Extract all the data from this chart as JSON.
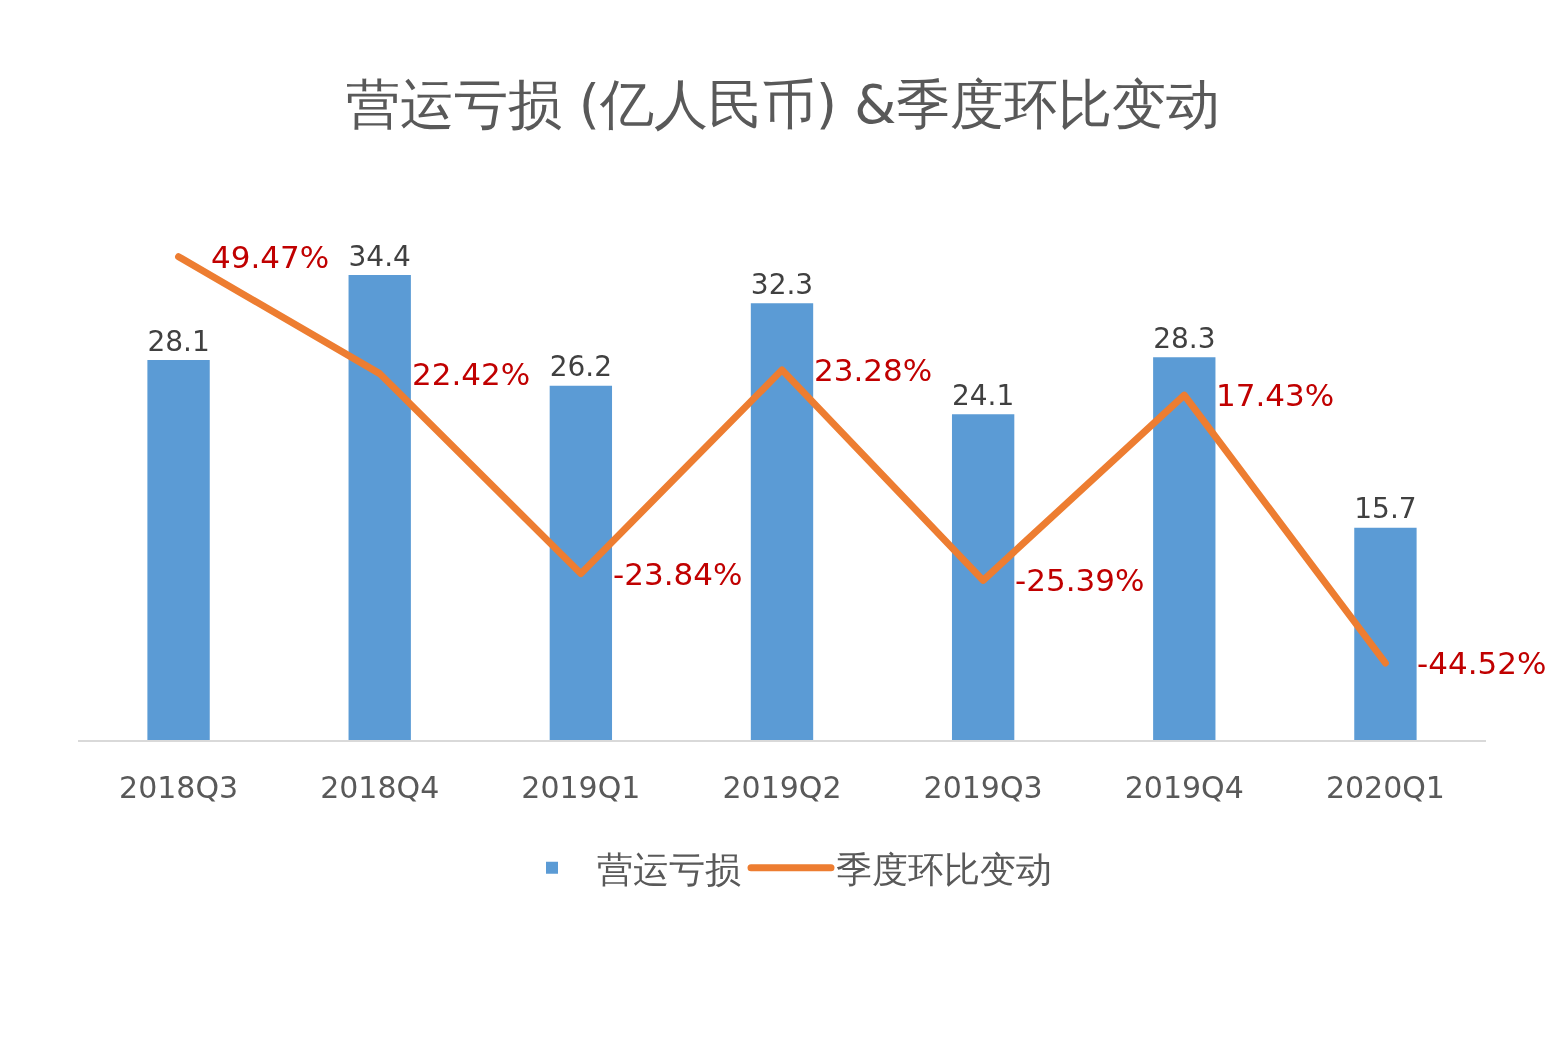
{
  "chart_data": {
    "type": "bar",
    "title": "营运亏损 (亿人民币) &季度环比变动",
    "categories": [
      "2018Q3",
      "2018Q4",
      "2019Q1",
      "2019Q2",
      "2019Q3",
      "2019Q4",
      "2020Q1"
    ],
    "series": [
      {
        "name": "营运亏损",
        "color": "#5b9bd5",
        "values": [
          28.1,
          34.4,
          26.2,
          32.3,
          24.1,
          28.3,
          15.7
        ],
        "value_labels": [
          "28.1",
          "34.4",
          "26.2",
          "32.3",
          "24.1",
          "28.3",
          "15.7"
        ]
      },
      {
        "name": "季度环比变动",
        "type": "line",
        "axis": "y2",
        "color": "#ed7d31",
        "values": [
          49.47,
          22.42,
          -23.84,
          23.28,
          -25.39,
          17.43,
          -44.52
        ],
        "value_labels": [
          "49.47%",
          "22.42%",
          "-23.84%",
          "23.28%",
          "-25.39%",
          "17.43%",
          "-44.52%"
        ]
      }
    ],
    "legend": "bottom",
    "tick_labels": "x"
  }
}
